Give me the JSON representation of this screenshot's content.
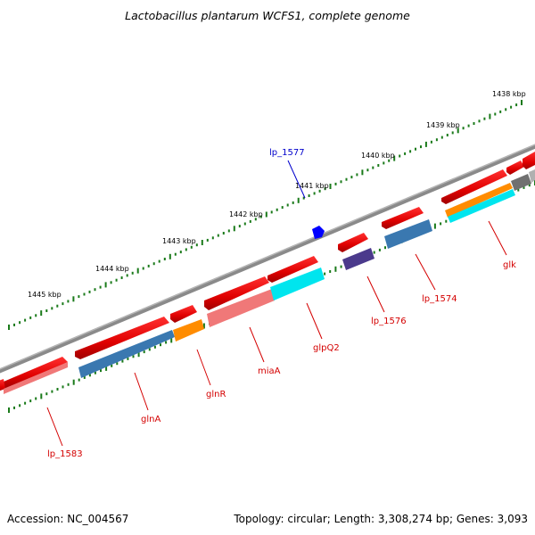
{
  "title": "Lactobacillus plantarum WCFS1, complete genome",
  "accession": "Accession: NC_004567",
  "topology": "Topology: circular; Length: 3,308,274 bp; Genes: 3,093",
  "ticks": [
    {
      "label": "1438 kbp",
      "pos": 1438
    },
    {
      "label": "1439 kbp",
      "pos": 1439
    },
    {
      "label": "1440 kbp",
      "pos": 1440
    },
    {
      "label": "1441 kbp",
      "pos": 1441
    },
    {
      "label": "1442 kbp",
      "pos": 1442
    },
    {
      "label": "1443 kbp",
      "pos": 1443
    },
    {
      "label": "1444 kbp",
      "pos": 1444
    },
    {
      "label": "1445 kbp",
      "pos": 1445
    }
  ],
  "genes": [
    {
      "label": "lp_1583",
      "color": "#d40000"
    },
    {
      "label": "glnA",
      "color": "#d40000"
    },
    {
      "label": "glnR",
      "color": "#d40000"
    },
    {
      "label": "miaA",
      "color": "#d40000"
    },
    {
      "label": "glpQ2",
      "color": "#d40000"
    },
    {
      "label": "lp_1576",
      "color": "#d40000"
    },
    {
      "label": "lp_1574",
      "color": "#d40000"
    },
    {
      "label": "glk",
      "color": "#d40000"
    },
    {
      "label": "lp_1577",
      "color": "#0000cc"
    }
  ],
  "colors": {
    "cds": "#e00000",
    "backbone": "#808080",
    "tick": "#1a7a1a",
    "ortholog_blue": "#3a78b0",
    "orange": "#ff8c00",
    "cyan": "#00e5ee",
    "purple": "#4b3a8c",
    "pink": "#f07878",
    "gray": "#707070",
    "blue_marker": "#0000ff"
  }
}
